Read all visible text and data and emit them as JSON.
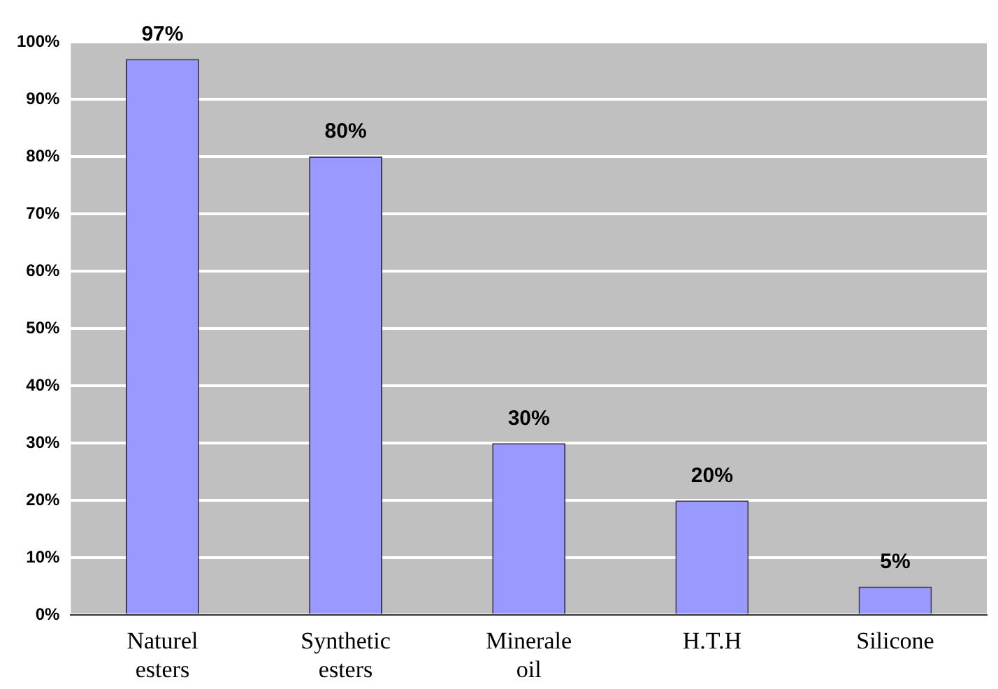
{
  "chart_data": {
    "type": "bar",
    "categories": [
      "Naturel esters",
      "Synthetic esters",
      "Minerale oil",
      "H.T.H",
      "Silicone"
    ],
    "values": [
      97,
      80,
      30,
      20,
      5
    ],
    "value_labels": [
      "97%",
      "80%",
      "30%",
      "20%",
      "5%"
    ],
    "color": "#9999ff",
    "ylim": [
      0,
      100
    ],
    "yticks": [
      {
        "value": 0,
        "label": "0%"
      },
      {
        "value": 10,
        "label": "10%"
      },
      {
        "value": 20,
        "label": "20%"
      },
      {
        "value": 30,
        "label": "30%"
      },
      {
        "value": 40,
        "label": "40%"
      },
      {
        "value": 50,
        "label": "50%"
      },
      {
        "value": 60,
        "label": "60%"
      },
      {
        "value": 70,
        "label": "70%"
      },
      {
        "value": 80,
        "label": "80%"
      },
      {
        "value": 90,
        "label": "90%"
      },
      {
        "value": 100,
        "label": "100%"
      }
    ],
    "grid": "y",
    "legend": false
  }
}
